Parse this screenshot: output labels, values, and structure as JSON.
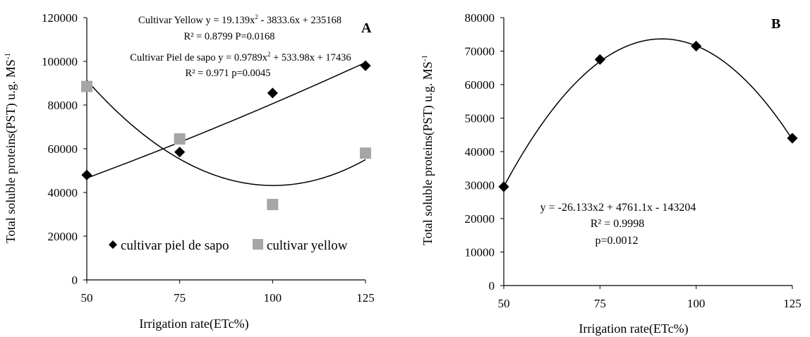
{
  "chart_data": [
    {
      "type": "scatter",
      "panel_letter": "A",
      "xlabel": "Irrigation rate(ETc%)",
      "ylabel": "Total soluble proteins(PST) u.g. MS",
      "ylabel_sup": "-1",
      "xlim": [
        50,
        125
      ],
      "ylim": [
        0,
        120000
      ],
      "x_ticks": [
        50,
        75,
        100,
        125
      ],
      "y_ticks": [
        0,
        20000,
        40000,
        60000,
        80000,
        100000,
        120000
      ],
      "grid": false,
      "legend_position": "lower-left",
      "series": [
        {
          "name": "cultivar piel de sapo",
          "marker": "diamond",
          "color": "#000000",
          "x": [
            50,
            75,
            100,
            125
          ],
          "y": [
            48000,
            58500,
            85500,
            98000
          ],
          "trendline": {
            "type": "poly2",
            "a": 0.9789,
            "b": 533.98,
            "c": 17436
          }
        },
        {
          "name": "cultivar yellow",
          "marker": "square",
          "color": "#a6a6a6",
          "x": [
            50,
            75,
            100,
            125
          ],
          "y": [
            88500,
            64500,
            34500,
            58000
          ],
          "trendline": {
            "type": "poly2",
            "a": 19.139,
            "b": -3833.6,
            "c": 235168
          }
        }
      ],
      "annotations": {
        "yellow_eq_pre": "Cultivar Yellow y = 19.139x",
        "yellow_eq_post": " - 3833.6x + 235168",
        "yellow_stats": "R² = 0.8799 P=0.0168",
        "piel_eq_pre": "Cultivar Piel de sapo y = 0.9789x",
        "piel_eq_post": " + 533.98x + 17436",
        "piel_stats": "R² = 0.971 p=0.0045",
        "sup2": "2"
      }
    },
    {
      "type": "scatter",
      "panel_letter": "B",
      "xlabel": "Irrigation rate(ETc%)",
      "ylabel": "Total soluble proteins(PST) u.g. MS",
      "ylabel_sup": "-1",
      "xlim": [
        50,
        125
      ],
      "ylim": [
        0,
        80000
      ],
      "x_ticks": [
        50,
        75,
        100,
        125
      ],
      "y_ticks": [
        0,
        10000,
        20000,
        30000,
        40000,
        50000,
        60000,
        70000,
        80000
      ],
      "grid": false,
      "series": [
        {
          "marker": "diamond",
          "color": "#000000",
          "x": [
            50,
            75,
            100,
            125
          ],
          "y": [
            29500,
            67500,
            71500,
            44000
          ],
          "trendline": {
            "type": "poly2",
            "a": -26.133,
            "b": 4761.1,
            "c": -143204
          }
        }
      ],
      "annotations": {
        "eq": "y = -26.133x2 + 4761.1x - 143204",
        "r2": "R² = 0.9998",
        "p": "p=0.0012"
      }
    }
  ]
}
